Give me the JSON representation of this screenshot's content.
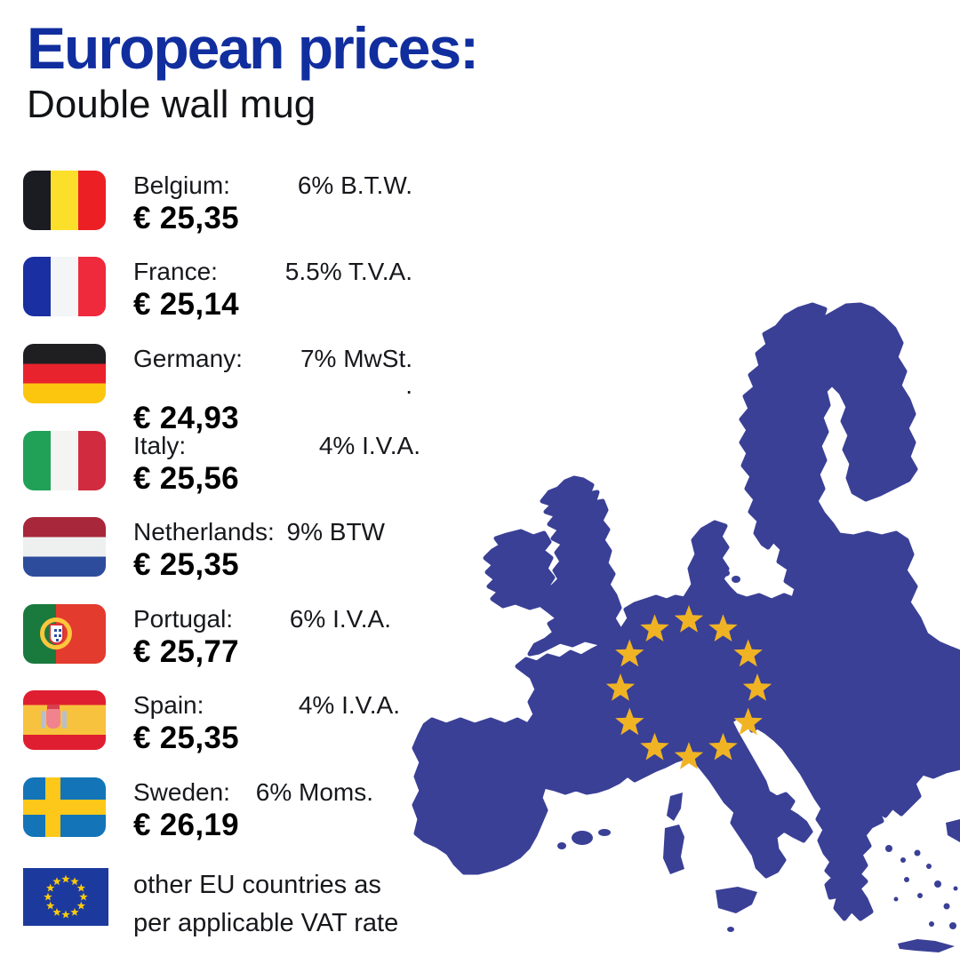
{
  "header": {
    "title": "European prices:",
    "subtitle": "Double wall mug"
  },
  "countries": [
    {
      "name": "Belgium:",
      "price": "€ 25,35",
      "vat": "6% B.T.W.",
      "flag": "belgium"
    },
    {
      "name": "France:",
      "price": "€ 25,14",
      "vat": "5.5% T.V.A.",
      "flag": "france"
    },
    {
      "name": "Germany:",
      "price": "€ 24,93",
      "vat": "7% MwSt.\n.",
      "flag": "germany"
    },
    {
      "name": "Italy:",
      "price": "€ 25,56",
      "vat": "4% I.V.A.",
      "flag": "italy"
    },
    {
      "name": "Netherlands:",
      "price": "€ 25,35",
      "vat": "9% BTW",
      "flag": "netherlands"
    },
    {
      "name": "Portugal:",
      "price": "€ 25,77",
      "vat": "6% I.V.A.",
      "flag": "portugal"
    },
    {
      "name": "Spain:",
      "price": "€ 25,35",
      "vat": "4% I.V.A.",
      "flag": "spain"
    },
    {
      "name": "Sweden:",
      "price": "€ 26,19",
      "vat": "6% Moms.",
      "flag": "sweden"
    }
  ],
  "footer": {
    "line1": "other EU countries as",
    "line2": "per applicable VAT rate",
    "flag": "eu"
  },
  "colors": {
    "title_blue": "#112e9f",
    "map_blue": "#3a4096",
    "star_gold": "#f0b324",
    "eu_flag_blue": "#1c3a9e",
    "eu_star_yellow": "#fcca0c"
  }
}
